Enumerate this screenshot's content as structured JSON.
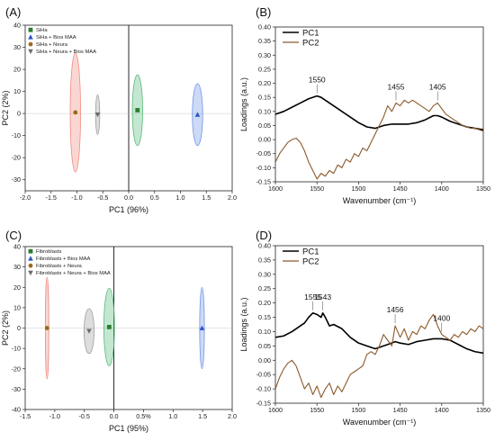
{
  "chart_data": [
    {
      "panel": "(A)",
      "type": "scatter",
      "xlabel": "PC1 (96%)",
      "ylabel": "PC2 (2%)",
      "xlim": [
        -2.0,
        2.0
      ],
      "ylim": [
        -35,
        40
      ],
      "xticks": [
        "-2.0",
        "-1.5",
        "-1.0",
        "-0.5",
        "0.0",
        "0.5",
        "1.0",
        "1.5",
        "2.0"
      ],
      "yticks": [
        "-30",
        "-20",
        "-10",
        "0",
        "10",
        "20",
        "30",
        "40"
      ],
      "legend_position": "top-left",
      "series": [
        {
          "name": "SiHa",
          "marker": "square",
          "color": "#2e7d32",
          "ellipse_color": "#57b97a",
          "center": [
            0.17,
            1.5
          ],
          "radius": [
            0.1,
            16
          ]
        },
        {
          "name": "SiHa + Bios MAA",
          "marker": "triangle-up",
          "color": "#2855c8",
          "ellipse_color": "#6f95e6",
          "center": [
            1.33,
            -0.5
          ],
          "radius": [
            0.1,
            14
          ]
        },
        {
          "name": "SiHa + Neura",
          "marker": "circle",
          "color": "#9a6a1a",
          "ellipse_color": "#f08a80",
          "center": [
            -1.03,
            0.5
          ],
          "radius": [
            0.1,
            27
          ]
        },
        {
          "name": "SiHa + Neura + Bios MAA",
          "marker": "triangle-down",
          "color": "#6b6b6b",
          "ellipse_color": "#9e9e9e",
          "center": [
            -0.6,
            -0.5
          ],
          "radius": [
            0.04,
            9
          ]
        }
      ]
    },
    {
      "panel": "(B)",
      "type": "line",
      "xlabel": "Wavenumber (cm⁻¹)",
      "ylabel": "Loadings (a.u.)",
      "xlim": [
        1600,
        1350
      ],
      "ylim": [
        -0.15,
        0.4
      ],
      "xticks": [
        "1600",
        "1550",
        "1500",
        "1450",
        "1400",
        "1350"
      ],
      "yticks": [
        "-0.15",
        "-0.10",
        "-0.05",
        "0.00",
        "0.05",
        "0.10",
        "0.15",
        "0.20",
        "0.25",
        "0.30",
        "0.35",
        "0.40"
      ],
      "legend_position": "top-left",
      "series": [
        {
          "name": "PC1",
          "color": "#000000",
          "x": [
            1600,
            1590,
            1580,
            1570,
            1560,
            1550,
            1545,
            1540,
            1530,
            1520,
            1510,
            1500,
            1490,
            1480,
            1470,
            1460,
            1450,
            1440,
            1430,
            1420,
            1410,
            1405,
            1400,
            1390,
            1380,
            1370,
            1360,
            1350
          ],
          "y": [
            0.09,
            0.1,
            0.115,
            0.13,
            0.145,
            0.155,
            0.15,
            0.14,
            0.12,
            0.1,
            0.08,
            0.06,
            0.045,
            0.04,
            0.05,
            0.055,
            0.055,
            0.055,
            0.06,
            0.07,
            0.085,
            0.085,
            0.08,
            0.065,
            0.055,
            0.045,
            0.04,
            0.035
          ]
        },
        {
          "name": "PC2",
          "color": "#8b5a2b",
          "x": [
            1600,
            1595,
            1590,
            1585,
            1580,
            1575,
            1570,
            1565,
            1560,
            1555,
            1550,
            1545,
            1540,
            1535,
            1530,
            1525,
            1520,
            1515,
            1510,
            1505,
            1500,
            1495,
            1490,
            1485,
            1480,
            1475,
            1470,
            1465,
            1460,
            1455,
            1450,
            1445,
            1440,
            1435,
            1430,
            1425,
            1420,
            1415,
            1410,
            1405,
            1400,
            1395,
            1390,
            1385,
            1380,
            1375,
            1370,
            1365,
            1360,
            1355,
            1350
          ],
          "y": [
            -0.08,
            -0.05,
            -0.03,
            -0.01,
            0.0,
            0.005,
            -0.01,
            -0.04,
            -0.08,
            -0.11,
            -0.14,
            -0.12,
            -0.13,
            -0.11,
            -0.12,
            -0.09,
            -0.1,
            -0.07,
            -0.08,
            -0.05,
            -0.06,
            -0.03,
            -0.04,
            -0.01,
            0.02,
            0.05,
            0.08,
            0.12,
            0.1,
            0.13,
            0.12,
            0.14,
            0.13,
            0.14,
            0.13,
            0.12,
            0.11,
            0.1,
            0.12,
            0.13,
            0.11,
            0.09,
            0.08,
            0.07,
            0.06,
            0.05,
            0.045,
            0.04,
            0.04,
            0.035,
            0.03
          ]
        }
      ],
      "annotations": [
        {
          "x": 1550,
          "text": "1550"
        },
        {
          "x": 1455,
          "text": "1455"
        },
        {
          "x": 1405,
          "text": "1405"
        }
      ]
    },
    {
      "panel": "(C)",
      "type": "scatter",
      "xlabel": "PC1 (95%)",
      "ylabel": "PC2 (2%)",
      "xlim": [
        -1.5,
        2.0
      ],
      "ylim": [
        -40,
        40
      ],
      "xticks": [
        "-1.5",
        "-1.0",
        "-0.5",
        "0.0",
        "0.5%",
        "1.0",
        "1.5",
        "2.0"
      ],
      "yticks": [
        "-40",
        "-30",
        "-20",
        "-10",
        "0",
        "10",
        "20",
        "30",
        "40"
      ],
      "legend_position": "top-left",
      "series": [
        {
          "name": "Fibroblasts",
          "marker": "square",
          "color": "#2e7d32",
          "ellipse_color": "#57b97a",
          "center": [
            -0.08,
            0.5
          ],
          "radius": [
            0.09,
            19
          ]
        },
        {
          "name": "Fibroblasts + Bios MAA",
          "marker": "triangle-up",
          "color": "#2855c8",
          "ellipse_color": "#6f95e6",
          "center": [
            1.49,
            0.0
          ],
          "radius": [
            0.04,
            20
          ]
        },
        {
          "name": "Fibroblasts + Neura",
          "marker": "circle",
          "color": "#9a6a1a",
          "ellipse_color": "#f08a80",
          "center": [
            -1.13,
            0.0
          ],
          "radius": [
            0.03,
            25
          ]
        },
        {
          "name": "Fibroblasts + Neura + Bios MAA",
          "marker": "triangle-down",
          "color": "#6b6b6b",
          "ellipse_color": "#9e9e9e",
          "center": [
            -0.42,
            -1.5
          ],
          "radius": [
            0.085,
            11
          ]
        }
      ]
    },
    {
      "panel": "(D)",
      "type": "line",
      "xlabel": "Wavenumber (cm⁻¹)",
      "ylabel": "Loadings (a.u.)",
      "xlim": [
        1600,
        1350
      ],
      "ylim": [
        -0.15,
        0.4
      ],
      "xticks": [
        "1600",
        "1550",
        "1500",
        "1450",
        "1400",
        "1350"
      ],
      "yticks": [
        "-0.15",
        "-0.10",
        "-0.05",
        "0.00",
        "0.05",
        "0.10",
        "0.15",
        "0.20",
        "0.25",
        "0.30",
        "0.35",
        "0.40"
      ],
      "legend_position": "top-left",
      "series": [
        {
          "name": "PC1",
          "color": "#000000",
          "x": [
            1600,
            1590,
            1580,
            1570,
            1565,
            1560,
            1555,
            1550,
            1545,
            1543,
            1540,
            1535,
            1530,
            1520,
            1510,
            1500,
            1490,
            1480,
            1470,
            1460,
            1456,
            1450,
            1440,
            1430,
            1420,
            1410,
            1400,
            1390,
            1380,
            1370,
            1360,
            1350
          ],
          "y": [
            0.08,
            0.085,
            0.1,
            0.12,
            0.13,
            0.15,
            0.165,
            0.16,
            0.15,
            0.165,
            0.15,
            0.12,
            0.125,
            0.11,
            0.08,
            0.06,
            0.05,
            0.04,
            0.05,
            0.06,
            0.065,
            0.06,
            0.055,
            0.065,
            0.07,
            0.075,
            0.075,
            0.07,
            0.055,
            0.04,
            0.03,
            0.025
          ]
        },
        {
          "name": "PC2",
          "color": "#8b5a2b",
          "x": [
            1600,
            1595,
            1590,
            1585,
            1580,
            1575,
            1570,
            1565,
            1560,
            1555,
            1550,
            1545,
            1540,
            1535,
            1530,
            1525,
            1520,
            1515,
            1510,
            1505,
            1500,
            1495,
            1490,
            1485,
            1480,
            1475,
            1470,
            1465,
            1460,
            1456,
            1450,
            1445,
            1440,
            1435,
            1430,
            1425,
            1420,
            1415,
            1410,
            1405,
            1400,
            1395,
            1390,
            1385,
            1380,
            1375,
            1370,
            1365,
            1360,
            1355,
            1350
          ],
          "y": [
            -0.1,
            -0.06,
            -0.03,
            -0.01,
            0.0,
            -0.02,
            -0.06,
            -0.1,
            -0.08,
            -0.12,
            -0.09,
            -0.13,
            -0.1,
            -0.08,
            -0.12,
            -0.09,
            -0.11,
            -0.08,
            -0.05,
            -0.04,
            -0.03,
            -0.02,
            0.02,
            0.03,
            0.02,
            0.05,
            0.09,
            0.07,
            0.05,
            0.12,
            0.08,
            0.11,
            0.07,
            0.1,
            0.09,
            0.12,
            0.11,
            0.14,
            0.16,
            0.12,
            0.09,
            0.08,
            0.07,
            0.09,
            0.08,
            0.1,
            0.09,
            0.11,
            0.1,
            0.12,
            0.11
          ]
        }
      ],
      "annotations": [
        {
          "x": 1555,
          "text": "1555"
        },
        {
          "x": 1543,
          "text": "1543"
        },
        {
          "x": 1456,
          "text": "1456"
        },
        {
          "x": 1400,
          "text": "1400"
        }
      ]
    }
  ]
}
